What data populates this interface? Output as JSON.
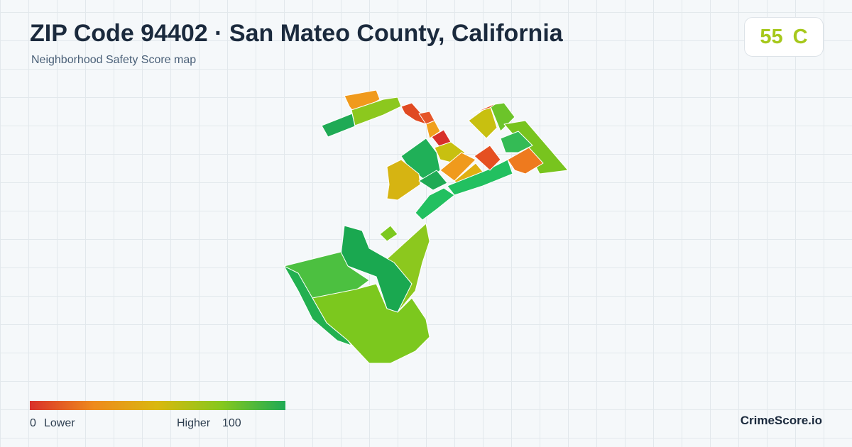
{
  "header": {
    "title": "ZIP Code 94402 · San Mateo County, California",
    "subtitle": "Neighborhood Safety Score map"
  },
  "score": {
    "value": 55,
    "grade": "C"
  },
  "legend": {
    "min": 0,
    "min_label": "Lower",
    "max_label": "Higher",
    "max": 100
  },
  "footer": {
    "brand": "CrimeScore.io"
  }
}
